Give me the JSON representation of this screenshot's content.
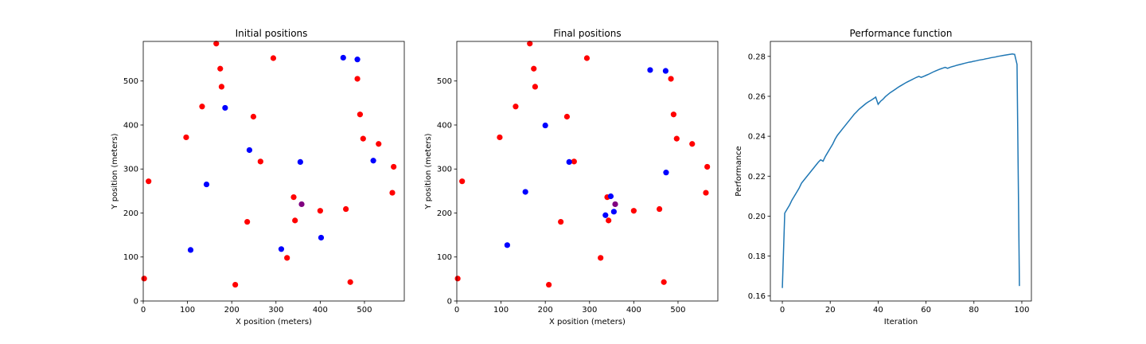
{
  "chart_data": [
    {
      "type": "scatter",
      "title": "Initial positions",
      "xlabel": "X position (meters)",
      "ylabel": "Y position (meters)",
      "xlim": [
        0,
        590
      ],
      "ylim": [
        0,
        590
      ],
      "xticks": [
        0,
        100,
        200,
        300,
        400,
        500
      ],
      "yticks": [
        0,
        100,
        200,
        300,
        400,
        500
      ],
      "grid": false,
      "colors": {
        "red": "#ff0000",
        "blue": "#0000ff",
        "purple": "#800080"
      },
      "red_points": [
        [
          2,
          51
        ],
        [
          12,
          272
        ],
        [
          97,
          372
        ],
        [
          133,
          442
        ],
        [
          165,
          585
        ],
        [
          174,
          528
        ],
        [
          177,
          487
        ],
        [
          235,
          180
        ],
        [
          249,
          419
        ],
        [
          265,
          317
        ],
        [
          294,
          552
        ],
        [
          325,
          98
        ],
        [
          340,
          236
        ],
        [
          343,
          183
        ],
        [
          208,
          37
        ],
        [
          400,
          205
        ],
        [
          458,
          209
        ],
        [
          468,
          43
        ],
        [
          484,
          505
        ],
        [
          490,
          424
        ],
        [
          497,
          369
        ],
        [
          532,
          357
        ],
        [
          563,
          246
        ],
        [
          566,
          305
        ]
      ],
      "blue_points": [
        [
          107,
          116
        ],
        [
          143,
          265
        ],
        [
          185,
          439
        ],
        [
          240,
          343
        ],
        [
          355,
          316
        ],
        [
          312,
          118
        ],
        [
          402,
          144
        ],
        [
          452,
          553
        ],
        [
          484,
          549
        ],
        [
          520,
          319
        ]
      ],
      "purple_points": [
        [
          358,
          220
        ]
      ]
    },
    {
      "type": "scatter",
      "title": "Final positions",
      "xlabel": "X position (meters)",
      "ylabel": "Y position (meters)",
      "xlim": [
        0,
        590
      ],
      "ylim": [
        0,
        590
      ],
      "xticks": [
        0,
        100,
        200,
        300,
        400,
        500
      ],
      "yticks": [
        0,
        100,
        200,
        300,
        400,
        500
      ],
      "grid": false,
      "colors": {
        "red": "#ff0000",
        "blue": "#0000ff",
        "purple": "#800080"
      },
      "red_points": [
        [
          2,
          51
        ],
        [
          12,
          272
        ],
        [
          97,
          372
        ],
        [
          133,
          442
        ],
        [
          165,
          585
        ],
        [
          174,
          528
        ],
        [
          177,
          487
        ],
        [
          235,
          180
        ],
        [
          249,
          419
        ],
        [
          265,
          317
        ],
        [
          294,
          552
        ],
        [
          325,
          98
        ],
        [
          340,
          236
        ],
        [
          343,
          183
        ],
        [
          208,
          37
        ],
        [
          400,
          205
        ],
        [
          458,
          209
        ],
        [
          468,
          43
        ],
        [
          484,
          505
        ],
        [
          490,
          424
        ],
        [
          497,
          369
        ],
        [
          532,
          357
        ],
        [
          563,
          246
        ],
        [
          566,
          305
        ]
      ],
      "blue_points": [
        [
          114,
          127
        ],
        [
          155,
          248
        ],
        [
          200,
          399
        ],
        [
          254,
          316
        ],
        [
          336,
          195
        ],
        [
          348,
          238
        ],
        [
          355,
          203
        ],
        [
          437,
          525
        ],
        [
          472,
          523
        ],
        [
          473,
          292
        ]
      ],
      "purple_points": [
        [
          358,
          220
        ]
      ]
    },
    {
      "type": "line",
      "title": "Performance function",
      "xlabel": "Iteration",
      "ylabel": "Performance",
      "xlim": [
        -5,
        104
      ],
      "ylim": [
        0.1575,
        0.2875
      ],
      "xticks": [
        0,
        20,
        40,
        60,
        80,
        100
      ],
      "yticks": [
        0.16,
        0.18,
        0.2,
        0.22,
        0.24,
        0.26,
        0.28
      ],
      "grid": false,
      "series": [
        {
          "color": "#1f77b4",
          "x": [
            0,
            1,
            2,
            3,
            4,
            5,
            6,
            7,
            8,
            9,
            10,
            11,
            12,
            13,
            14,
            15,
            16,
            17,
            18,
            19,
            20,
            21,
            22,
            23,
            24,
            25,
            26,
            27,
            28,
            29,
            30,
            31,
            32,
            33,
            34,
            35,
            36,
            37,
            38,
            39,
            40,
            41,
            42,
            43,
            44,
            45,
            46,
            47,
            48,
            49,
            50,
            51,
            52,
            53,
            54,
            55,
            56,
            57,
            58,
            59,
            60,
            61,
            62,
            63,
            64,
            65,
            66,
            67,
            68,
            69,
            70,
            71,
            72,
            73,
            74,
            75,
            76,
            77,
            78,
            79,
            80,
            81,
            82,
            83,
            84,
            85,
            86,
            87,
            88,
            89,
            90,
            91,
            92,
            93,
            94,
            95,
            96,
            97,
            98,
            99
          ],
          "values": [
            0.164,
            0.2015,
            0.2035,
            0.2055,
            0.208,
            0.21,
            0.212,
            0.214,
            0.2165,
            0.218,
            0.2195,
            0.221,
            0.2225,
            0.224,
            0.2255,
            0.227,
            0.2282,
            0.2275,
            0.23,
            0.232,
            0.234,
            0.236,
            0.2385,
            0.2405,
            0.242,
            0.2435,
            0.245,
            0.2465,
            0.248,
            0.2495,
            0.251,
            0.2522,
            0.2535,
            0.2545,
            0.2555,
            0.2565,
            0.2573,
            0.258,
            0.2588,
            0.2596,
            0.256,
            0.2575,
            0.2585,
            0.2598,
            0.2608,
            0.2618,
            0.2626,
            0.2634,
            0.2642,
            0.265,
            0.2657,
            0.2664,
            0.2671,
            0.2677,
            0.2683,
            0.2689,
            0.2695,
            0.27,
            0.2695,
            0.27,
            0.2705,
            0.271,
            0.2716,
            0.2722,
            0.2727,
            0.2732,
            0.2737,
            0.2741,
            0.2745,
            0.274,
            0.2745,
            0.2749,
            0.2752,
            0.2756,
            0.2759,
            0.2762,
            0.2765,
            0.2768,
            0.2771,
            0.2773,
            0.2776,
            0.2778,
            0.2781,
            0.2783,
            0.2785,
            0.2788,
            0.279,
            0.2793,
            0.2795,
            0.2797,
            0.28,
            0.2802,
            0.2804,
            0.2806,
            0.2808,
            0.281,
            0.2812,
            0.281,
            0.276,
            0.165
          ]
        }
      ]
    }
  ]
}
